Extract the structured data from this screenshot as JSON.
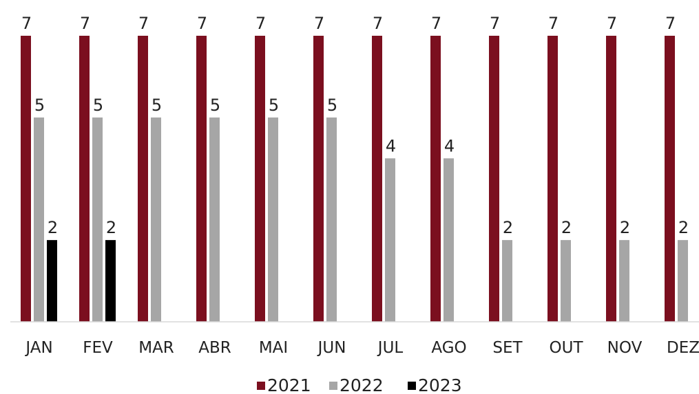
{
  "chart_data": {
    "type": "bar",
    "categories": [
      "JAN",
      "FEV",
      "MAR",
      "ABR",
      "MAI",
      "JUN",
      "JUL",
      "AGO",
      "SET",
      "OUT",
      "NOV",
      "DEZ"
    ],
    "series": [
      {
        "name": "2021",
        "color": "#7b0f1f",
        "values": [
          7,
          7,
          7,
          7,
          7,
          7,
          7,
          7,
          7,
          7,
          7,
          7
        ]
      },
      {
        "name": "2022",
        "color": "#a6a6a6",
        "values": [
          5,
          5,
          5,
          5,
          5,
          5,
          4,
          4,
          2,
          2,
          2,
          2
        ]
      },
      {
        "name": "2023",
        "color": "#000000",
        "values": [
          2,
          2,
          null,
          null,
          null,
          null,
          null,
          null,
          null,
          null,
          null,
          null
        ]
      }
    ],
    "ylim": [
      0,
      7
    ],
    "grid": false,
    "data_labels": true,
    "legend_position": "bottom"
  }
}
